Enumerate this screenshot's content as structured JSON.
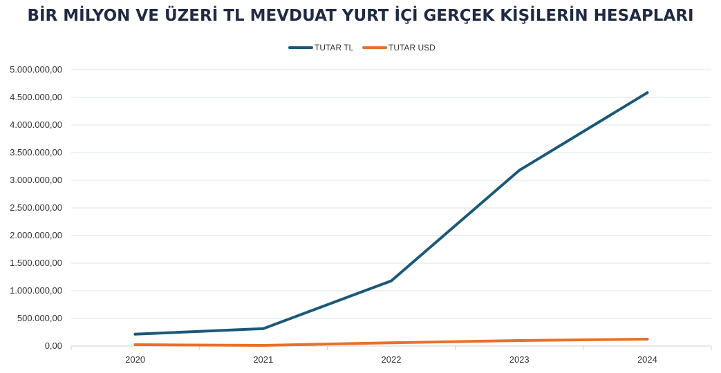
{
  "chart_data": {
    "type": "line",
    "title": "BİR MİLYON VE ÜZERİ TL MEVDUAT YURT İÇİ GERÇEK KİŞİLERİN HESAPLARI",
    "xlabel": "",
    "ylabel": "",
    "categories": [
      "2020",
      "2021",
      "2022",
      "2023",
      "2024"
    ],
    "series": [
      {
        "name": "TUTAR TL",
        "color": "#1b5878",
        "values": [
          215000,
          315000,
          1180000,
          3180000,
          4585000
        ]
      },
      {
        "name": "TUTAR USD",
        "color": "#e8702a",
        "values": [
          25000,
          12000,
          60000,
          100000,
          125000
        ]
      }
    ],
    "ylim": [
      0,
      5000000
    ],
    "yticks": [
      0,
      500000,
      1000000,
      1500000,
      2000000,
      2500000,
      3000000,
      3500000,
      4000000,
      4500000,
      5000000
    ],
    "ytick_labels": [
      "0,00",
      "500.000,00",
      "1.000.000,00",
      "1.500.000,00",
      "2.000.000,00",
      "2.500.000,00",
      "3.000.000,00",
      "3.500.000,00",
      "4.000.000,00",
      "4.500.000,00",
      "5.000.000,00"
    ],
    "grid": true,
    "legend_position": "top-center",
    "gridline_color": "#d9e3ea"
  }
}
